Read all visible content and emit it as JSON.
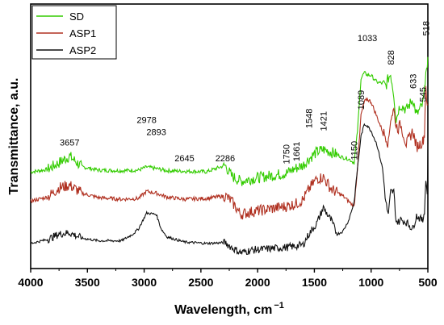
{
  "chart_data": {
    "type": "line",
    "xlabel": "Wavelength, cm",
    "xlabel_superscript": "−1",
    "ylabel": "Transmittance, a.u.",
    "xlim": [
      4000,
      500
    ],
    "ylim": [
      0,
      1
    ],
    "x_reversed": true,
    "yticks_shown": false,
    "xticks": [
      4000,
      3500,
      3000,
      2500,
      2000,
      1500,
      1000,
      500
    ],
    "grid": false,
    "legend_position": "top-left",
    "series": [
      {
        "name": "SD",
        "color": "#33cc00",
        "noise": 0.012,
        "points": [
          [
            4000,
            0.365
          ],
          [
            3850,
            0.375
          ],
          [
            3750,
            0.4
          ],
          [
            3657,
            0.425
          ],
          [
            3550,
            0.385
          ],
          [
            3400,
            0.372
          ],
          [
            3200,
            0.37
          ],
          [
            3050,
            0.372
          ],
          [
            2978,
            0.384
          ],
          [
            2893,
            0.378
          ],
          [
            2800,
            0.37
          ],
          [
            2645,
            0.368
          ],
          [
            2450,
            0.366
          ],
          [
            2286,
            0.39
          ],
          [
            2230,
            0.35
          ],
          [
            2150,
            0.33
          ],
          [
            2050,
            0.34
          ],
          [
            1900,
            0.35
          ],
          [
            1750,
            0.36
          ],
          [
            1661,
            0.38
          ],
          [
            1600,
            0.39
          ],
          [
            1548,
            0.415
          ],
          [
            1480,
            0.44
          ],
          [
            1421,
            0.45
          ],
          [
            1350,
            0.44
          ],
          [
            1250,
            0.42
          ],
          [
            1200,
            0.415
          ],
          [
            1150,
            0.4
          ],
          [
            1120,
            0.52
          ],
          [
            1089,
            0.72
          ],
          [
            1060,
            0.74
          ],
          [
            1033,
            0.732
          ],
          [
            1000,
            0.73
          ],
          [
            950,
            0.705
          ],
          [
            900,
            0.7
          ],
          [
            870,
            0.69
          ],
          [
            848,
            0.72
          ],
          [
            828,
            0.735
          ],
          [
            800,
            0.66
          ],
          [
            780,
            0.56
          ],
          [
            760,
            0.6
          ],
          [
            740,
            0.62
          ],
          [
            690,
            0.6
          ],
          [
            633,
            0.64
          ],
          [
            600,
            0.58
          ],
          [
            545,
            0.62
          ],
          [
            530,
            0.67
          ],
          [
            518,
            0.76
          ],
          [
            505,
            0.74
          ],
          [
            500,
            0.8
          ]
        ]
      },
      {
        "name": "ASP1",
        "color": "#b03020",
        "noise": 0.012,
        "points": [
          [
            4000,
            0.255
          ],
          [
            3850,
            0.27
          ],
          [
            3750,
            0.305
          ],
          [
            3657,
            0.315
          ],
          [
            3550,
            0.285
          ],
          [
            3400,
            0.268
          ],
          [
            3200,
            0.262
          ],
          [
            3050,
            0.265
          ],
          [
            2978,
            0.292
          ],
          [
            2893,
            0.285
          ],
          [
            2800,
            0.27
          ],
          [
            2645,
            0.262
          ],
          [
            2450,
            0.265
          ],
          [
            2286,
            0.275
          ],
          [
            2230,
            0.255
          ],
          [
            2150,
            0.205
          ],
          [
            2050,
            0.215
          ],
          [
            1900,
            0.225
          ],
          [
            1750,
            0.235
          ],
          [
            1661,
            0.245
          ],
          [
            1600,
            0.26
          ],
          [
            1548,
            0.3
          ],
          [
            1480,
            0.34
          ],
          [
            1421,
            0.345
          ],
          [
            1350,
            0.3
          ],
          [
            1250,
            0.275
          ],
          [
            1200,
            0.255
          ],
          [
            1150,
            0.235
          ],
          [
            1120,
            0.38
          ],
          [
            1089,
            0.58
          ],
          [
            1060,
            0.63
          ],
          [
            1033,
            0.64
          ],
          [
            1000,
            0.63
          ],
          [
            950,
            0.575
          ],
          [
            900,
            0.52
          ],
          [
            870,
            0.5
          ],
          [
            848,
            0.47
          ],
          [
            828,
            0.57
          ],
          [
            800,
            0.6
          ],
          [
            780,
            0.54
          ],
          [
            760,
            0.53
          ],
          [
            740,
            0.545
          ],
          [
            690,
            0.47
          ],
          [
            633,
            0.52
          ],
          [
            600,
            0.46
          ],
          [
            545,
            0.48
          ],
          [
            530,
            0.51
          ],
          [
            518,
            0.7
          ],
          [
            505,
            0.6
          ],
          [
            500,
            0.62
          ]
        ]
      },
      {
        "name": "ASP2",
        "color": "#111111",
        "noise": 0.008,
        "points": [
          [
            4000,
            0.095
          ],
          [
            3850,
            0.11
          ],
          [
            3750,
            0.13
          ],
          [
            3657,
            0.135
          ],
          [
            3550,
            0.115
          ],
          [
            3400,
            0.105
          ],
          [
            3200,
            0.105
          ],
          [
            3100,
            0.13
          ],
          [
            3050,
            0.15
          ],
          [
            2978,
            0.21
          ],
          [
            2893,
            0.205
          ],
          [
            2850,
            0.15
          ],
          [
            2800,
            0.12
          ],
          [
            2645,
            0.1
          ],
          [
            2450,
            0.095
          ],
          [
            2286,
            0.098
          ],
          [
            2230,
            0.08
          ],
          [
            2150,
            0.06
          ],
          [
            2050,
            0.07
          ],
          [
            1900,
            0.075
          ],
          [
            1750,
            0.08
          ],
          [
            1661,
            0.085
          ],
          [
            1600,
            0.09
          ],
          [
            1548,
            0.13
          ],
          [
            1480,
            0.17
          ],
          [
            1421,
            0.23
          ],
          [
            1350,
            0.18
          ],
          [
            1300,
            0.13
          ],
          [
            1250,
            0.14
          ],
          [
            1200,
            0.18
          ],
          [
            1150,
            0.25
          ],
          [
            1120,
            0.38
          ],
          [
            1089,
            0.5
          ],
          [
            1060,
            0.545
          ],
          [
            1033,
            0.54
          ],
          [
            1000,
            0.52
          ],
          [
            950,
            0.47
          ],
          [
            900,
            0.38
          ],
          [
            870,
            0.25
          ],
          [
            848,
            0.2
          ],
          [
            828,
            0.29
          ],
          [
            800,
            0.29
          ],
          [
            780,
            0.18
          ],
          [
            760,
            0.175
          ],
          [
            740,
            0.185
          ],
          [
            690,
            0.175
          ],
          [
            633,
            0.15
          ],
          [
            600,
            0.2
          ],
          [
            545,
            0.18
          ],
          [
            530,
            0.22
          ],
          [
            518,
            0.33
          ],
          [
            505,
            0.29
          ],
          [
            500,
            0.47
          ]
        ]
      }
    ],
    "annotations": [
      {
        "text": "3657",
        "x": 3657,
        "y": 0.465,
        "vertical": false
      },
      {
        "text": "2978",
        "x": 2978,
        "y": 0.55,
        "vertical": false
      },
      {
        "text": "2893",
        "x": 2893,
        "y": 0.505,
        "vertical": false
      },
      {
        "text": "2645",
        "x": 2645,
        "y": 0.405,
        "vertical": false
      },
      {
        "text": "2286",
        "x": 2286,
        "y": 0.405,
        "vertical": false
      },
      {
        "text": "1750",
        "x": 1750,
        "y": 0.395,
        "vertical": true
      },
      {
        "text": "1661",
        "x": 1661,
        "y": 0.405,
        "vertical": true
      },
      {
        "text": "1548",
        "x": 1548,
        "y": 0.53,
        "vertical": true
      },
      {
        "text": "1421",
        "x": 1421,
        "y": 0.52,
        "vertical": true
      },
      {
        "text": "1150",
        "x": 1150,
        "y": 0.41,
        "vertical": true
      },
      {
        "text": "1089",
        "x": 1089,
        "y": 0.6,
        "vertical": true
      },
      {
        "text": "1033",
        "x": 1033,
        "y": 0.86,
        "vertical": false
      },
      {
        "text": "828",
        "x": 828,
        "y": 0.77,
        "vertical": true
      },
      {
        "text": "633",
        "x": 633,
        "y": 0.68,
        "vertical": true
      },
      {
        "text": "545",
        "x": 545,
        "y": 0.63,
        "vertical": true
      },
      {
        "text": "518",
        "x": 518,
        "y": 0.88,
        "vertical": true
      }
    ]
  }
}
